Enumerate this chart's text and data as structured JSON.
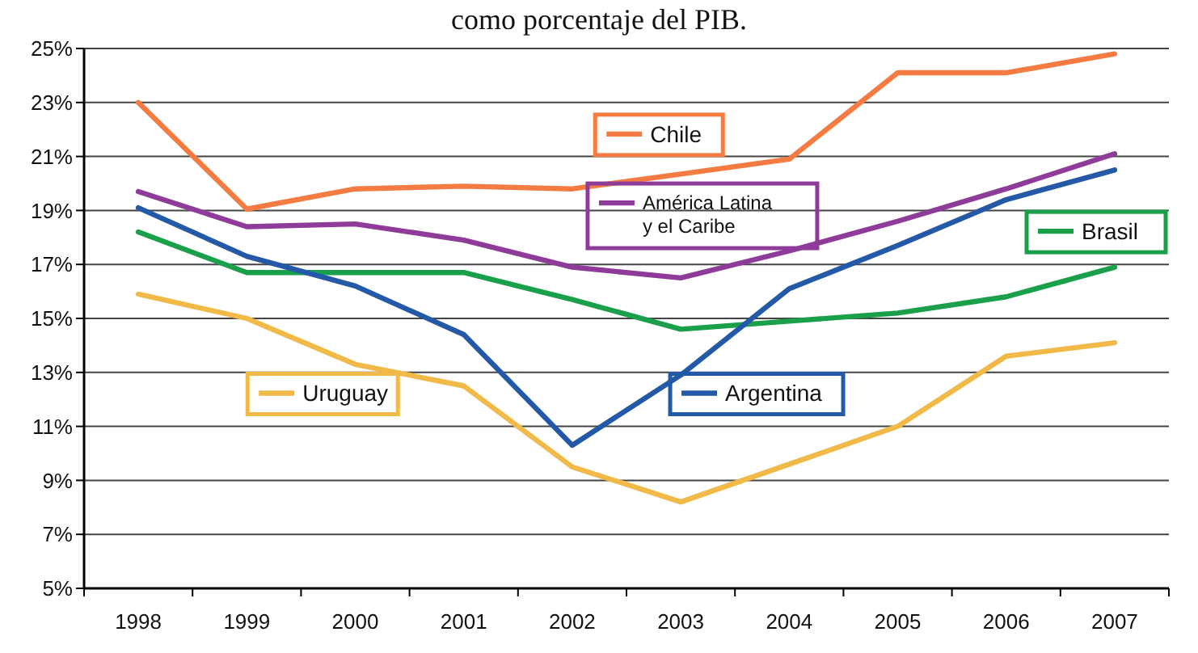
{
  "chart_data": {
    "type": "line",
    "title": "como porcentaje del PIB.",
    "categories": [
      "1998",
      "1999",
      "2000",
      "2001",
      "2002",
      "2003",
      "2004",
      "2005",
      "2006",
      "2007"
    ],
    "series": [
      {
        "name": "Chile",
        "color": "#f47b42",
        "values": [
          23.0,
          19.05,
          19.8,
          19.9,
          19.8,
          20.35,
          20.9,
          24.1,
          24.1,
          24.8
        ]
      },
      {
        "name": "América Latina y el Caribe",
        "color": "#8e3b9a",
        "values": [
          19.7,
          18.4,
          18.5,
          17.9,
          16.9,
          16.5,
          17.5,
          18.6,
          19.8,
          21.1
        ]
      },
      {
        "name": "Brasil",
        "color": "#1aa04a",
        "values": [
          18.2,
          16.7,
          16.7,
          16.7,
          15.7,
          14.6,
          14.9,
          15.2,
          15.8,
          16.9
        ]
      },
      {
        "name": "Uruguay",
        "color": "#f0b948",
        "values": [
          15.9,
          15.0,
          13.3,
          12.5,
          9.5,
          8.2,
          9.6,
          11.0,
          13.6,
          14.1
        ]
      },
      {
        "name": "Argentina",
        "color": "#2459a8",
        "values": [
          19.1,
          17.3,
          16.2,
          14.4,
          10.3,
          12.9,
          16.1,
          17.7,
          19.4,
          20.5
        ]
      }
    ],
    "ylim": [
      5,
      25
    ],
    "yticks": [
      {
        "value": 5,
        "label": "5%"
      },
      {
        "value": 7,
        "label": "7%"
      },
      {
        "value": 9,
        "label": "9%"
      },
      {
        "value": 11,
        "label": "11%"
      },
      {
        "value": 13,
        "label": "13%"
      },
      {
        "value": 15,
        "label": "15%"
      },
      {
        "value": 17,
        "label": "17%"
      },
      {
        "value": 19,
        "label": "19%"
      },
      {
        "value": 21,
        "label": "21%"
      },
      {
        "value": 23,
        "label": "23%"
      },
      {
        "value": 25,
        "label": "25%"
      }
    ],
    "grid": "y",
    "legend": "center",
    "marker": "none",
    "line_style": "solid"
  }
}
